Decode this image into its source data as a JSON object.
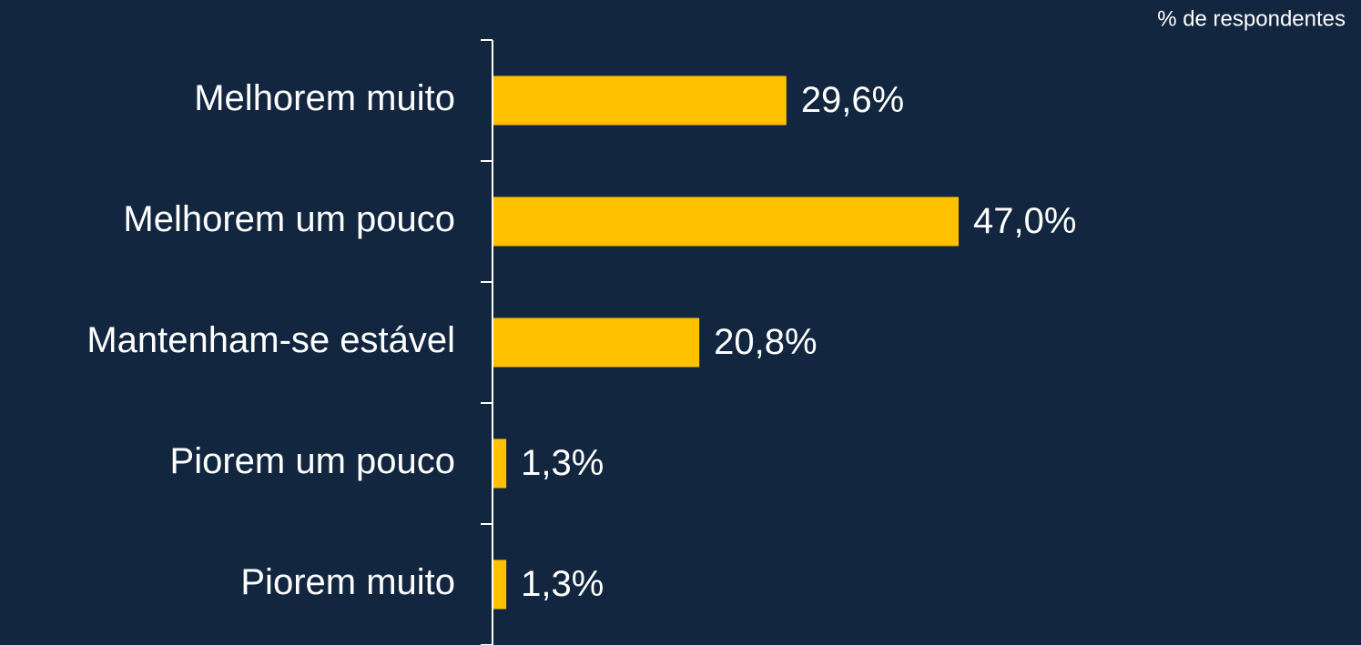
{
  "chart_data": {
    "type": "hbar",
    "annotation": "% de respondentes",
    "categories": [
      "Melhorem muito",
      "Melhorem um pouco",
      "Mantenham-se estável",
      "Piorem um pouco",
      "Piorem muito"
    ],
    "values": [
      29.6,
      47.0,
      20.8,
      1.3,
      1.3
    ],
    "value_labels": [
      "29,6%",
      "47,0%",
      "20,8%",
      "1,3%",
      "1,3%"
    ],
    "color": "#ffc000"
  }
}
